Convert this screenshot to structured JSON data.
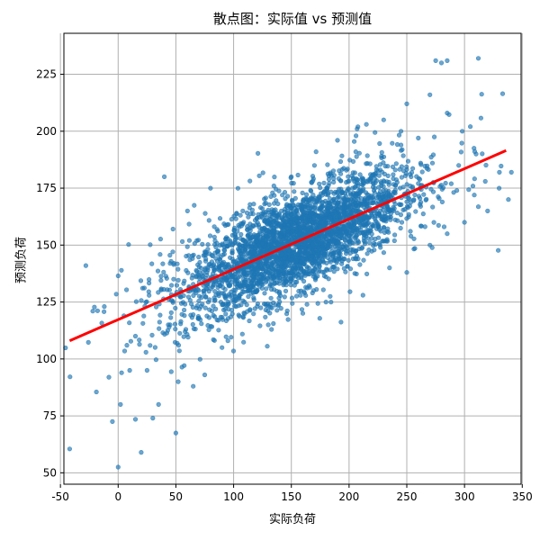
{
  "chart_data": {
    "type": "scatter",
    "title": "散点图：实际值 vs 预测值",
    "xlabel": "实际负荷",
    "ylabel": "预测负荷",
    "xlim": [
      -47,
      349
    ],
    "ylim": [
      45,
      243
    ],
    "x_ticks": [
      -50,
      0,
      50,
      100,
      150,
      200,
      250,
      300,
      350
    ],
    "y_ticks": [
      50,
      75,
      100,
      125,
      150,
      175,
      200,
      225
    ],
    "grid": true,
    "point_color": "#1f77b4",
    "fit_line_color": "#ff0000",
    "fit_line": {
      "x": [
        -42,
        336
      ],
      "y": [
        108,
        191.5
      ]
    },
    "outlier_points": [
      {
        "x": -42,
        "y": 60.5
      },
      {
        "x": 0,
        "y": 52.5
      },
      {
        "x": 20,
        "y": 59
      },
      {
        "x": 2,
        "y": 80
      },
      {
        "x": -5,
        "y": 72.5
      },
      {
        "x": 15,
        "y": 73.5
      },
      {
        "x": 50,
        "y": 67.5
      },
      {
        "x": -8,
        "y": 92
      },
      {
        "x": -28,
        "y": 141
      },
      {
        "x": -22,
        "y": 121
      },
      {
        "x": -12,
        "y": 123
      },
      {
        "x": 0,
        "y": 136.5
      },
      {
        "x": 30,
        "y": 74
      },
      {
        "x": 10,
        "y": 95
      },
      {
        "x": 5,
        "y": 119
      },
      {
        "x": 275,
        "y": 231
      },
      {
        "x": 280,
        "y": 230
      },
      {
        "x": 285,
        "y": 231
      },
      {
        "x": 312,
        "y": 232
      },
      {
        "x": 333,
        "y": 216.5
      },
      {
        "x": 330,
        "y": 175
      },
      {
        "x": 338,
        "y": 170
      },
      {
        "x": 310,
        "y": 190
      },
      {
        "x": 318,
        "y": 178
      },
      {
        "x": 305,
        "y": 202
      },
      {
        "x": 298,
        "y": 200
      },
      {
        "x": 285,
        "y": 208
      },
      {
        "x": 270,
        "y": 216
      },
      {
        "x": 260,
        "y": 197
      },
      {
        "x": 320,
        "y": 165
      },
      {
        "x": 295,
        "y": 185
      },
      {
        "x": 285,
        "y": 155
      },
      {
        "x": 300,
        "y": 160
      },
      {
        "x": 270,
        "y": 150
      },
      {
        "x": 40,
        "y": 180
      },
      {
        "x": 60,
        "y": 165
      },
      {
        "x": 90,
        "y": 105
      },
      {
        "x": 75,
        "y": 93
      },
      {
        "x": 35,
        "y": 80
      },
      {
        "x": 25,
        "y": 95
      },
      {
        "x": 52,
        "y": 90
      },
      {
        "x": 65,
        "y": 88
      },
      {
        "x": 45,
        "y": 115
      },
      {
        "x": 15,
        "y": 110
      },
      {
        "x": 230,
        "y": 205
      },
      {
        "x": 245,
        "y": 200
      },
      {
        "x": 250,
        "y": 212
      },
      {
        "x": 240,
        "y": 183
      },
      {
        "x": 255,
        "y": 175
      },
      {
        "x": 228,
        "y": 189
      },
      {
        "x": 262,
        "y": 186
      },
      {
        "x": 206,
        "y": 198
      },
      {
        "x": 215,
        "y": 203
      },
      {
        "x": 190,
        "y": 196
      },
      {
        "x": 235,
        "y": 140
      },
      {
        "x": 250,
        "y": 138
      },
      {
        "x": 212,
        "y": 128
      },
      {
        "x": 108,
        "y": 165
      },
      {
        "x": 125,
        "y": 162
      },
      {
        "x": 80,
        "y": 175
      },
      {
        "x": 95,
        "y": 108
      },
      {
        "x": 70,
        "y": 118
      },
      {
        "x": 58,
        "y": 112
      },
      {
        "x": 130,
        "y": 115
      },
      {
        "x": 160,
        "y": 120
      },
      {
        "x": 180,
        "y": 125
      },
      {
        "x": 170,
        "y": 185
      },
      {
        "x": 150,
        "y": 180
      }
    ]
  }
}
